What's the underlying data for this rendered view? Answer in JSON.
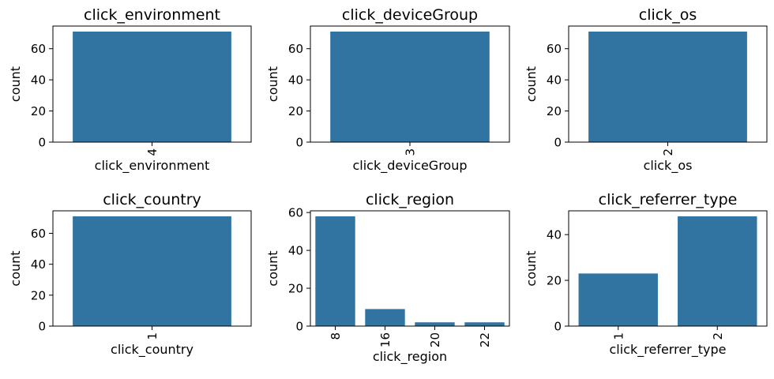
{
  "chart_data": [
    {
      "type": "bar",
      "title": "click_environment",
      "xlabel": "click_environment",
      "ylabel": "count",
      "categories": [
        "4"
      ],
      "values": [
        71
      ],
      "ylim": [
        0,
        74.55
      ],
      "yticks": [
        0,
        20,
        40,
        60
      ],
      "rotate_xticks": true
    },
    {
      "type": "bar",
      "title": "click_deviceGroup",
      "xlabel": "click_deviceGroup",
      "ylabel": "count",
      "categories": [
        "3"
      ],
      "values": [
        71
      ],
      "ylim": [
        0,
        74.55
      ],
      "yticks": [
        0,
        20,
        40,
        60
      ],
      "rotate_xticks": true
    },
    {
      "type": "bar",
      "title": "click_os",
      "xlabel": "click_os",
      "ylabel": "count",
      "categories": [
        "2"
      ],
      "values": [
        71
      ],
      "ylim": [
        0,
        74.55
      ],
      "yticks": [
        0,
        20,
        40,
        60
      ],
      "rotate_xticks": true
    },
    {
      "type": "bar",
      "title": "click_country",
      "xlabel": "click_country",
      "ylabel": "count",
      "categories": [
        "1"
      ],
      "values": [
        71
      ],
      "ylim": [
        0,
        74.55
      ],
      "yticks": [
        0,
        20,
        40,
        60
      ],
      "rotate_xticks": true
    },
    {
      "type": "bar",
      "title": "click_region",
      "xlabel": "click_region",
      "ylabel": "count",
      "categories": [
        "8",
        "16",
        "20",
        "22"
      ],
      "values": [
        58,
        9,
        2,
        2
      ],
      "ylim": [
        0,
        60.9
      ],
      "yticks": [
        0,
        20,
        40,
        60
      ],
      "rotate_xticks": true
    },
    {
      "type": "bar",
      "title": "click_referrer_type",
      "xlabel": "click_referrer_type",
      "ylabel": "count",
      "categories": [
        "1",
        "2"
      ],
      "values": [
        23,
        48
      ],
      "ylim": [
        0,
        50.4
      ],
      "yticks": [
        0,
        20,
        40
      ],
      "rotate_xticks": true
    }
  ],
  "colors": {
    "bar": "#3274a1"
  }
}
